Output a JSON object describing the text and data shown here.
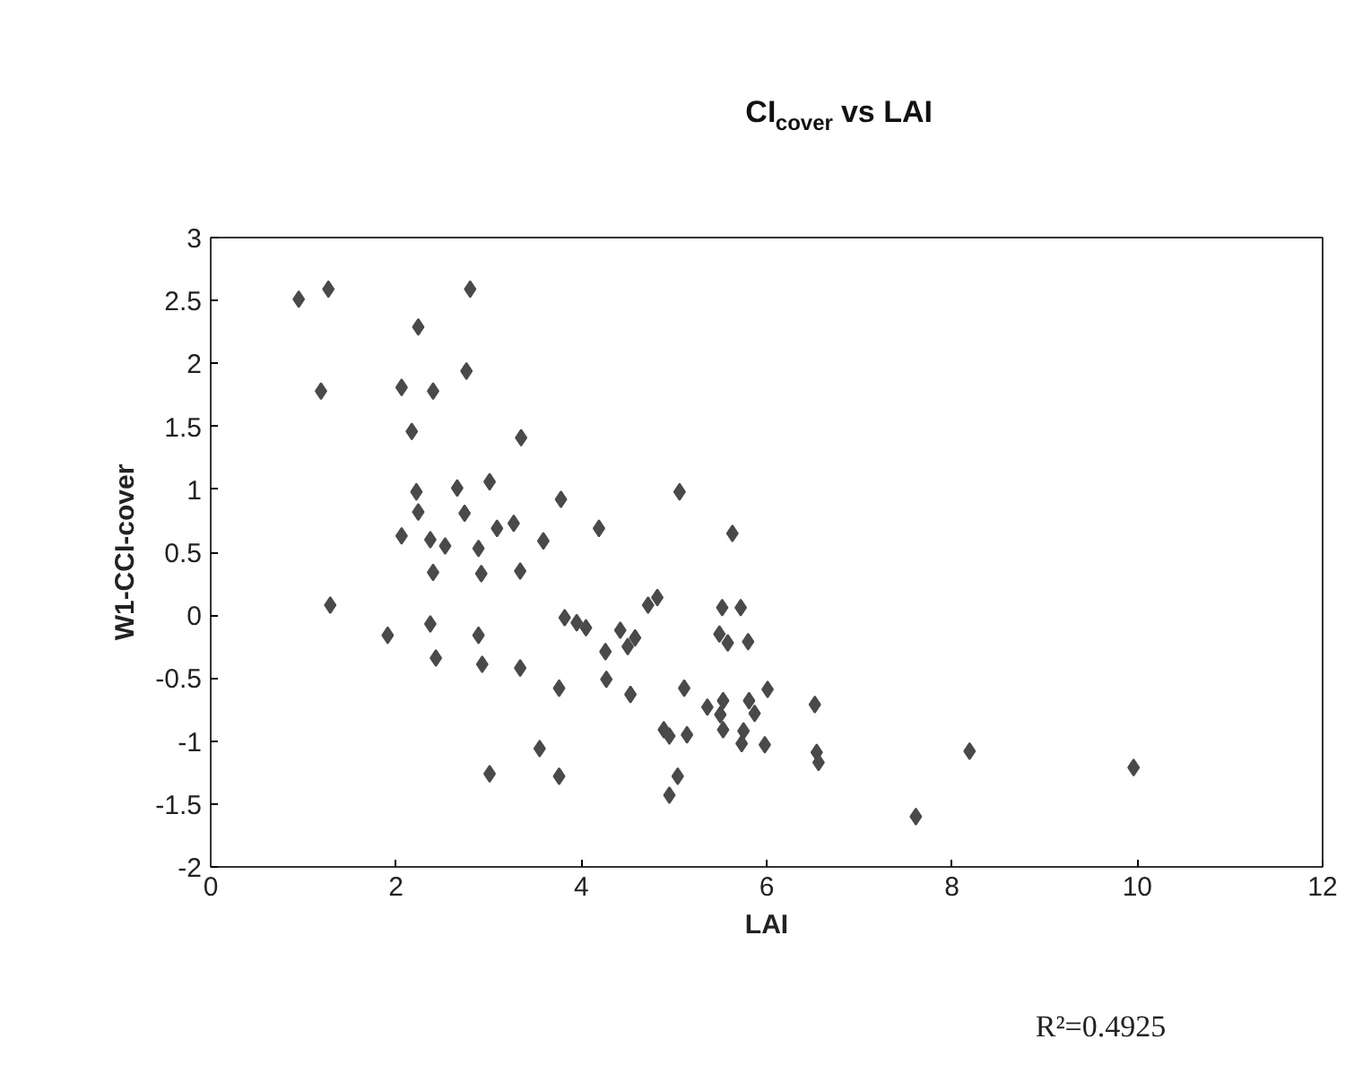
{
  "chart_data": {
    "type": "scatter",
    "title": "CI$_{cover}$ vs LAI",
    "xlabel": "LAI",
    "ylabel": "W1-CCI-cover",
    "annotations": [
      "R²=0.4925"
    ],
    "series": [
      {
        "color": "#4a4a4a",
        "x": [
          0.95,
          1.27,
          2.8,
          2.24,
          2.76,
          1.19,
          2.06,
          2.4,
          2.17,
          3.35,
          3.01,
          2.22,
          2.66,
          3.78,
          2.24,
          2.74,
          4.19,
          3.09,
          3.27,
          2.06,
          2.37,
          2.53,
          2.89,
          3.59,
          2.4,
          2.92,
          3.34,
          1.29,
          1.91,
          2.37,
          2.89,
          3.82,
          3.95,
          4.05,
          2.43,
          2.93,
          3.34,
          4.26,
          4.27,
          3.76,
          3.55,
          3.01,
          3.76,
          5.06,
          5.63,
          4.42,
          4.5,
          4.58,
          4.72,
          4.82,
          4.53,
          5.11,
          5.52,
          5.72,
          5.49,
          5.58,
          5.8,
          5.36,
          5.53,
          5.5,
          5.81,
          5.87,
          6.01,
          4.89,
          4.95,
          5.14,
          5.53,
          5.75,
          5.73,
          5.98,
          5.04,
          4.95,
          6.52,
          6.54,
          6.56,
          7.61,
          8.19,
          9.96
        ],
        "values": [
          2.51,
          2.59,
          2.59,
          2.29,
          1.94,
          1.78,
          1.81,
          1.78,
          1.46,
          1.41,
          1.06,
          0.98,
          1.01,
          0.92,
          0.82,
          0.81,
          0.69,
          0.69,
          0.73,
          0.63,
          0.6,
          0.55,
          0.53,
          0.59,
          0.34,
          0.33,
          0.35,
          0.08,
          -0.16,
          -0.07,
          -0.16,
          -0.02,
          -0.06,
          -0.1,
          -0.34,
          -0.39,
          -0.42,
          -0.29,
          -0.51,
          -0.58,
          -1.06,
          -1.26,
          -1.28,
          0.98,
          0.65,
          -0.12,
          -0.25,
          -0.18,
          0.08,
          0.14,
          -0.63,
          -0.58,
          0.06,
          0.06,
          -0.15,
          -0.22,
          -0.21,
          -0.73,
          -0.68,
          -0.79,
          -0.68,
          -0.78,
          -0.59,
          -0.91,
          -0.96,
          -0.95,
          -0.91,
          -0.92,
          -1.02,
          -1.03,
          -1.28,
          -1.43,
          -0.71,
          -1.09,
          -1.17,
          -1.6,
          -1.08,
          -1.21
        ]
      }
    ],
    "marker": "diamond",
    "grid": false,
    "xlim": [
      0,
      12
    ],
    "xticks": [
      0,
      2,
      4,
      6,
      8,
      10,
      12
    ],
    "ylim": [
      -2,
      3
    ],
    "yticks": [
      -2,
      -1.5,
      -1,
      -0.5,
      0,
      0.5,
      1,
      1.5,
      2,
      2.5,
      3
    ]
  }
}
